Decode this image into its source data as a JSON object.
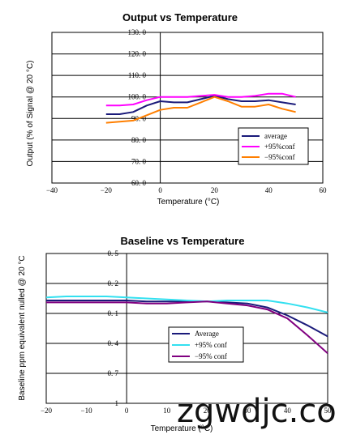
{
  "chart_data": [
    {
      "type": "line",
      "title": "Output vs Temperature",
      "xlabel": "Temperature (°C)",
      "ylabel": "Output (% of Signal @ 20 °C)",
      "xlim": [
        -40,
        60
      ],
      "ylim": [
        60,
        130
      ],
      "xticks": [
        "−40",
        "−20",
        "0",
        "20",
        "40",
        "60"
      ],
      "yticks": [
        "60. 0",
        "70. 0",
        "80. 0",
        "90. 0",
        "100. 0",
        "110. 0",
        "120. 0",
        "130. 0"
      ],
      "grid": true,
      "legend_position": "lower-right",
      "series": [
        {
          "name": "average",
          "color": "#1a1a7a",
          "x": [
            -20,
            -15,
            -10,
            -5,
            0,
            5,
            10,
            15,
            20,
            25,
            30,
            35,
            40,
            45,
            50
          ],
          "y": [
            92,
            92,
            93,
            96,
            98,
            97.5,
            97.5,
            99,
            100.5,
            99,
            98,
            98,
            98.5,
            97.5,
            96.5
          ]
        },
        {
          "name": "+95%conf",
          "color": "#ff00ff",
          "x": [
            -20,
            -15,
            -10,
            -5,
            0,
            5,
            10,
            15,
            20,
            25,
            30,
            35,
            40,
            45,
            50
          ],
          "y": [
            96,
            96,
            96.5,
            98.5,
            100,
            100,
            100,
            100.5,
            101,
            100,
            100,
            100.5,
            101.5,
            101.5,
            100
          ]
        },
        {
          "name": "−95%conf",
          "color": "#ff7f00",
          "x": [
            -20,
            -15,
            -10,
            -5,
            0,
            5,
            10,
            15,
            20,
            25,
            30,
            35,
            40,
            45,
            50
          ],
          "y": [
            88,
            88.5,
            89,
            91.5,
            94,
            95,
            95,
            97.5,
            100,
            98,
            95.5,
            95.5,
            96.5,
            94.5,
            93
          ]
        }
      ]
    },
    {
      "type": "line",
      "title": "Baseline vs Temperature",
      "xlabel": "Temperature (°C)",
      "ylabel": "Baseline ppm equivalent nulled @ 20 °C",
      "xlim": [
        -20,
        50
      ],
      "ylim": [
        -1,
        0.5
      ],
      "xticks": [
        "−20",
        "−10",
        "0",
        "10",
        "20",
        "30",
        "40",
        "50"
      ],
      "yticks": [
        "−1",
        "−0. 7",
        "−0. 4",
        "−0. 1",
        "0. 2",
        "0. 5"
      ],
      "grid": true,
      "legend_position": "lower-right",
      "series": [
        {
          "name": "Average",
          "color": "#1a1a7a",
          "x": [
            -20,
            -15,
            -10,
            -5,
            0,
            5,
            10,
            15,
            20,
            25,
            30,
            35,
            40,
            45,
            50
          ],
          "y": [
            0.03,
            0.03,
            0.03,
            0.03,
            0.03,
            0.02,
            0.02,
            0.02,
            0.02,
            0.01,
            0.0,
            -0.04,
            -0.12,
            -0.22,
            -0.33
          ]
        },
        {
          "name": "+95% conf",
          "color": "#33e0f0",
          "x": [
            -20,
            -15,
            -10,
            -5,
            0,
            5,
            10,
            15,
            20,
            25,
            30,
            35,
            40,
            45,
            50
          ],
          "y": [
            0.06,
            0.07,
            0.07,
            0.07,
            0.06,
            0.05,
            0.04,
            0.03,
            0.02,
            0.03,
            0.03,
            0.03,
            0.0,
            -0.04,
            -0.09
          ]
        },
        {
          "name": "−95% conf",
          "color": "#800080",
          "x": [
            -20,
            -15,
            -10,
            -5,
            0,
            5,
            10,
            15,
            20,
            25,
            30,
            35,
            40,
            45,
            50
          ],
          "y": [
            0.01,
            0.01,
            0.01,
            0.01,
            0.01,
            0.0,
            0.0,
            0.01,
            0.02,
            0.0,
            -0.02,
            -0.06,
            -0.15,
            -0.32,
            -0.5
          ]
        }
      ]
    }
  ],
  "watermark": "zgwdjc.co"
}
